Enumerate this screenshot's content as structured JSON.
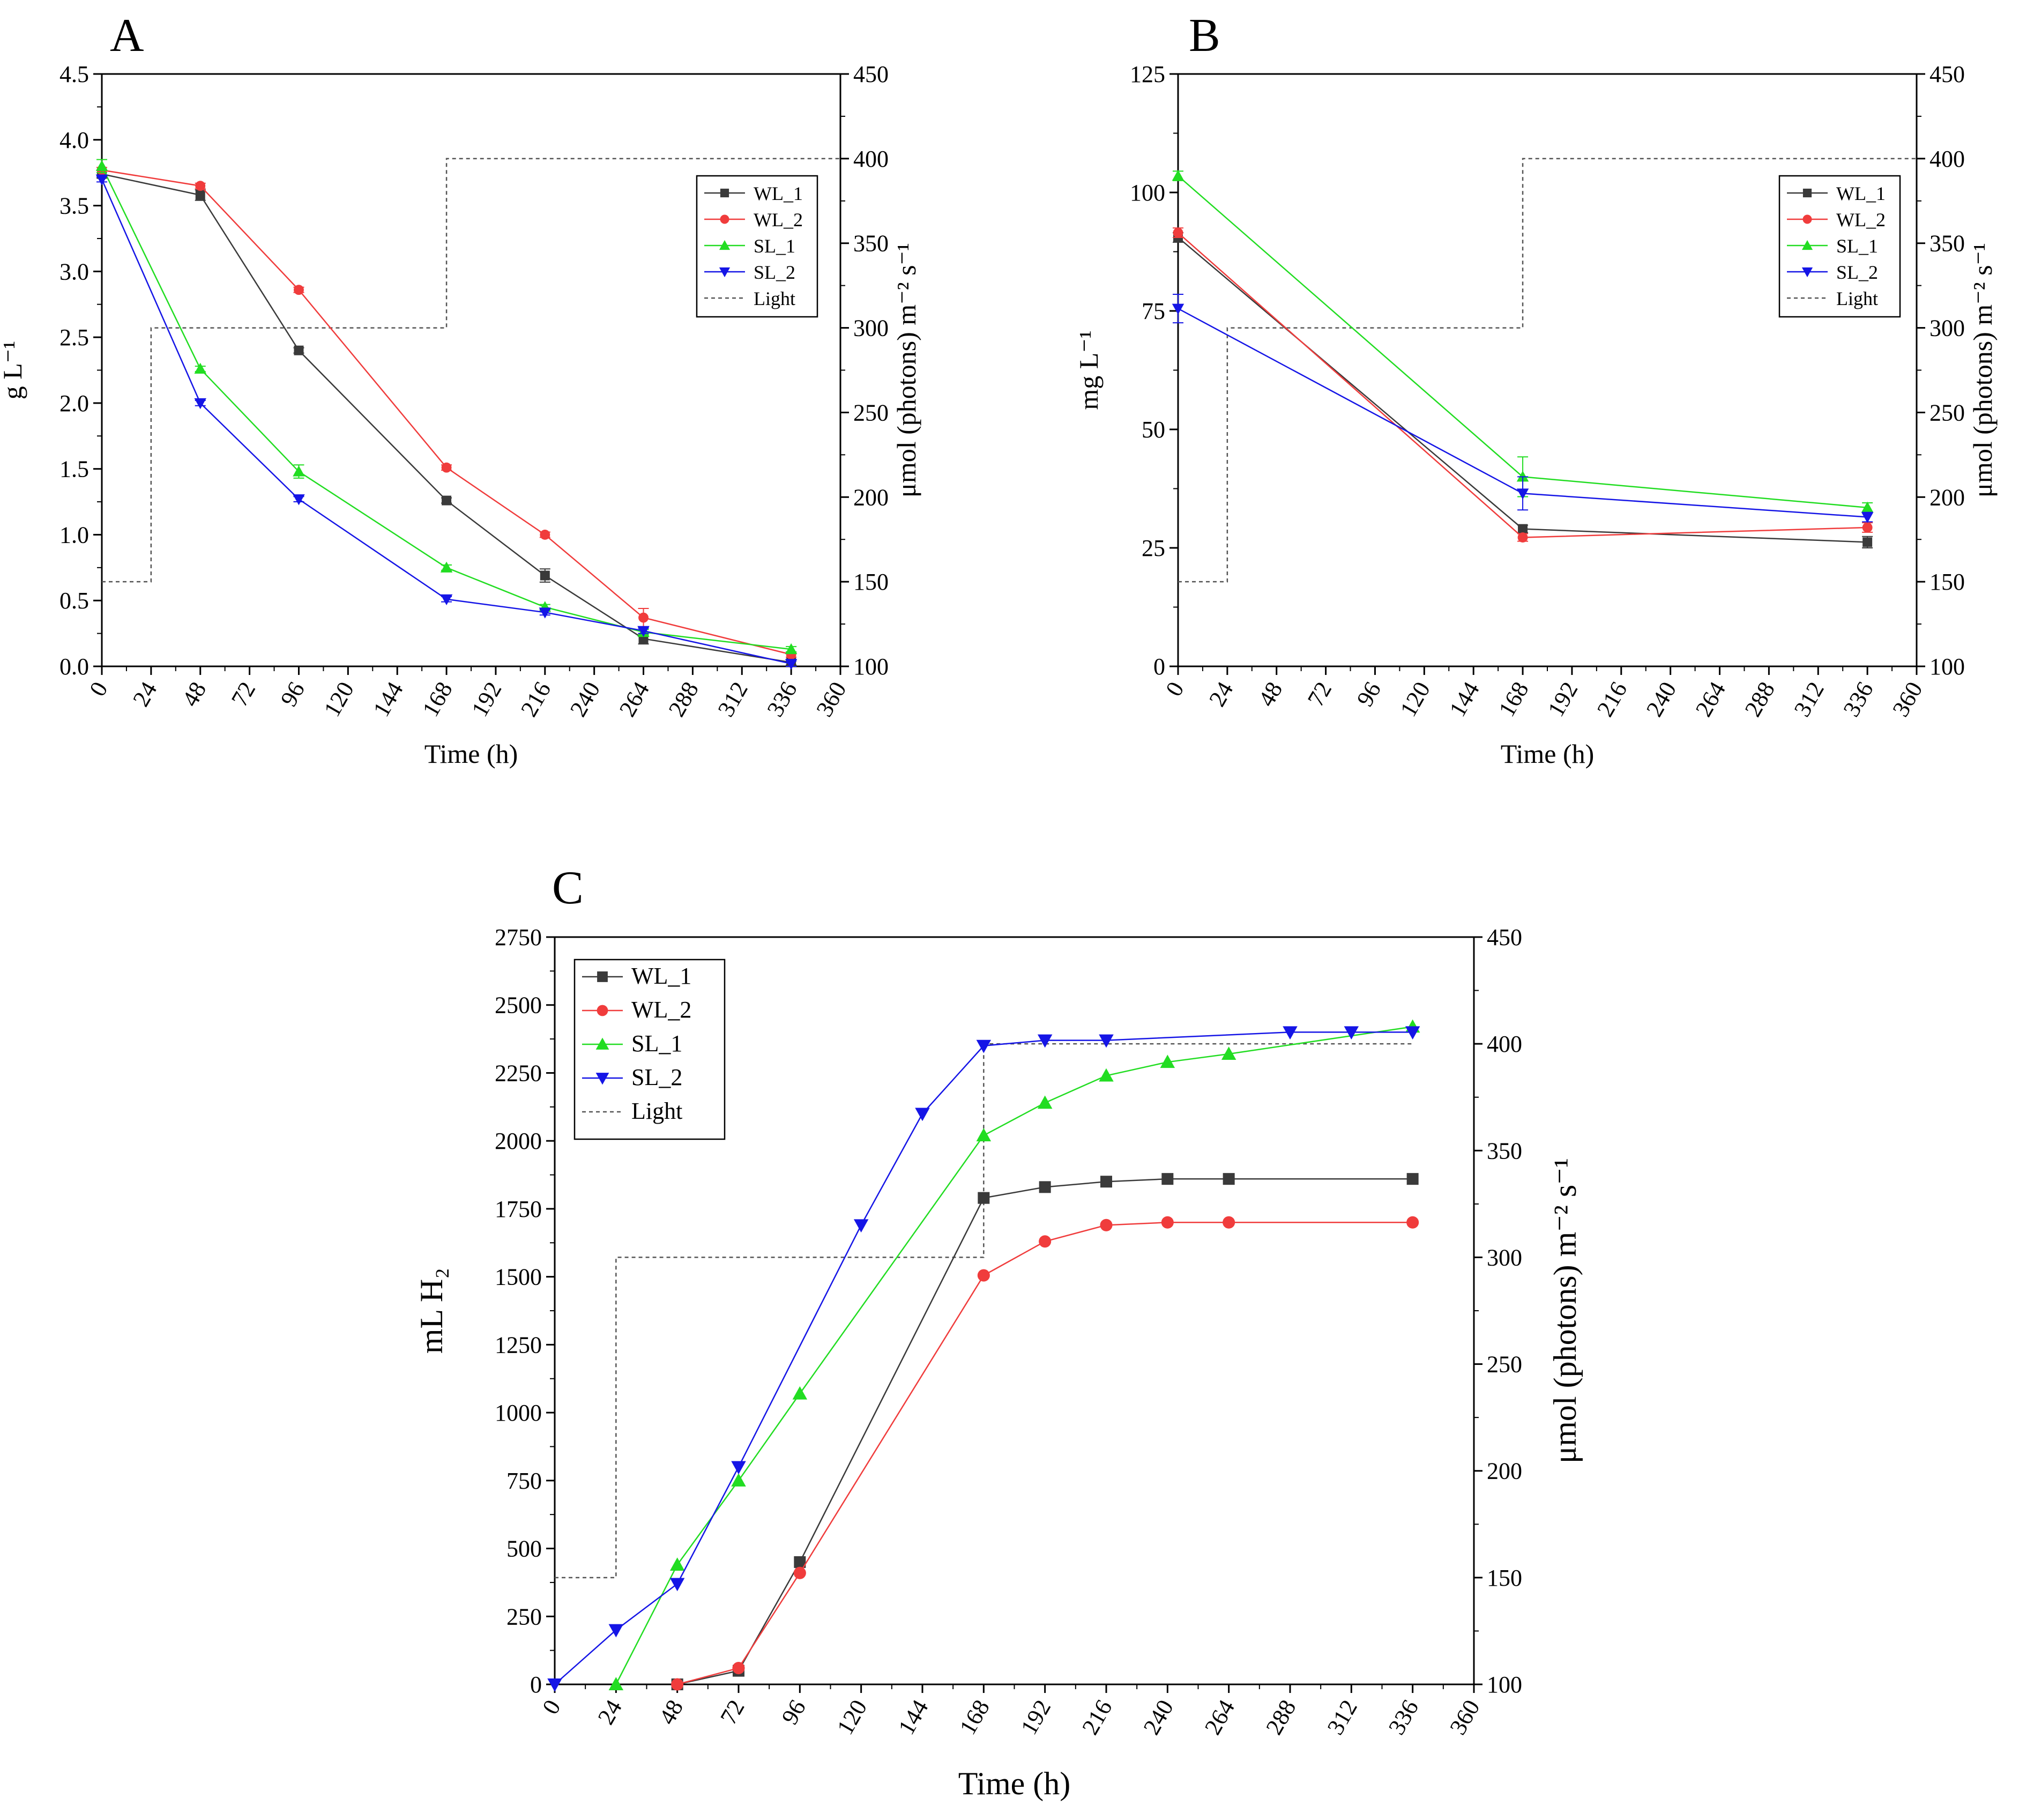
{
  "figure": {
    "panels": [
      "A",
      "B",
      "C"
    ]
  },
  "chart_data": [
    {
      "panel": "A",
      "type": "line",
      "xlabel": "Time (h)",
      "ylabel": "g L⁻¹",
      "y2label": "μmol (photons) m⁻² s⁻¹",
      "xlim": [
        0,
        360
      ],
      "ylim": [
        0,
        4.5
      ],
      "y2lim": [
        100,
        450
      ],
      "x_ticks": [
        "0",
        "24",
        "48",
        "72",
        "96",
        "120",
        "144",
        "168",
        "192",
        "216",
        "240",
        "264",
        "288",
        "312",
        "336",
        "360"
      ],
      "y_ticks": [
        "0.0",
        "0.5",
        "1.0",
        "1.5",
        "2.0",
        "2.5",
        "3.0",
        "3.5",
        "4.0",
        "4.5"
      ],
      "y2_ticks": [
        "100",
        "150",
        "200",
        "250",
        "300",
        "350",
        "400",
        "450"
      ],
      "legend": [
        "WL_1",
        "WL_2",
        "SL_1",
        "SL_2",
        "Light"
      ],
      "legend_position": "top-right",
      "series": [
        {
          "name": "WL_1",
          "color": "#3a3a3a",
          "marker": "square",
          "x": [
            0,
            48,
            96,
            168,
            216,
            264,
            336
          ],
          "y": [
            3.74,
            3.58,
            2.4,
            1.26,
            0.69,
            0.21,
            0.03
          ],
          "err": [
            0.03,
            0.04,
            0.02,
            0.02,
            0.05,
            0.04,
            0.02
          ]
        },
        {
          "name": "WL_2",
          "color": "#f03c3c",
          "marker": "circle",
          "x": [
            0,
            48,
            96,
            168,
            216,
            264,
            336
          ],
          "y": [
            3.77,
            3.65,
            2.86,
            1.51,
            1.0,
            0.37,
            0.09
          ],
          "err": [
            0.02,
            0.02,
            0.02,
            0.02,
            0.02,
            0.07,
            0.02
          ]
        },
        {
          "name": "SL_1",
          "color": "#22dd22",
          "marker": "triangle-up",
          "x": [
            0,
            48,
            96,
            168,
            216,
            264,
            336
          ],
          "y": [
            3.8,
            2.26,
            1.48,
            0.75,
            0.45,
            0.26,
            0.13
          ],
          "err": [
            0.05,
            0.02,
            0.05,
            0.02,
            0.02,
            0.02,
            0.02
          ]
        },
        {
          "name": "SL_2",
          "color": "#1515e6",
          "marker": "triangle-down",
          "x": [
            0,
            48,
            96,
            168,
            216,
            264,
            336
          ],
          "y": [
            3.7,
            2.0,
            1.27,
            0.51,
            0.41,
            0.27,
            0.02
          ],
          "err": [
            0.02,
            0.02,
            0.02,
            0.02,
            0.02,
            0.02,
            0.02
          ]
        }
      ],
      "light": {
        "name": "Light",
        "x": [
          0,
          24,
          24,
          168,
          168,
          360
        ],
        "y": [
          150,
          150,
          300,
          300,
          400,
          400
        ]
      }
    },
    {
      "panel": "B",
      "type": "line",
      "xlabel": "Time (h)",
      "ylabel": "mg L⁻¹",
      "y2label": "μmol (photons) m⁻² s⁻¹",
      "xlim": [
        0,
        360
      ],
      "ylim": [
        0,
        125
      ],
      "y2lim": [
        100,
        450
      ],
      "x_ticks": [
        "0",
        "24",
        "48",
        "72",
        "96",
        "120",
        "144",
        "168",
        "192",
        "216",
        "240",
        "264",
        "288",
        "312",
        "336",
        "360"
      ],
      "y_ticks": [
        "0",
        "25",
        "50",
        "75",
        "100",
        "125"
      ],
      "y2_ticks": [
        "100",
        "150",
        "200",
        "250",
        "300",
        "350",
        "400",
        "450"
      ],
      "legend": [
        "WL_1",
        "WL_2",
        "SL_1",
        "SL_2",
        "Light"
      ],
      "legend_position": "top-right",
      "series": [
        {
          "name": "WL_1",
          "color": "#3a3a3a",
          "marker": "square",
          "x": [
            0,
            168,
            336
          ],
          "y": [
            90.5,
            29.0,
            26.2
          ],
          "err": [
            1.0,
            0.8,
            1.2
          ]
        },
        {
          "name": "WL_2",
          "color": "#f03c3c",
          "marker": "circle",
          "x": [
            0,
            168,
            336
          ],
          "y": [
            91.5,
            27.2,
            29.3
          ],
          "err": [
            1.0,
            0.8,
            1.0
          ]
        },
        {
          "name": "SL_1",
          "color": "#22dd22",
          "marker": "triangle-up",
          "x": [
            0,
            168,
            336
          ],
          "y": [
            103.5,
            40.0,
            33.5
          ],
          "err": [
            1.0,
            4.2,
            1.0
          ]
        },
        {
          "name": "SL_2",
          "color": "#1515e6",
          "marker": "triangle-down",
          "x": [
            0,
            168,
            336
          ],
          "y": [
            75.5,
            36.5,
            31.5
          ],
          "err": [
            3.0,
            3.5,
            1.0
          ]
        }
      ],
      "light": {
        "name": "Light",
        "x": [
          0,
          24,
          24,
          168,
          168,
          360
        ],
        "y": [
          150,
          150,
          300,
          300,
          400,
          400
        ]
      }
    },
    {
      "panel": "C",
      "type": "line",
      "xlabel": "Time (h)",
      "ylabel": "mL H₂",
      "y2label": "μmol (photons) m⁻² s⁻¹",
      "xlim": [
        0,
        360
      ],
      "ylim": [
        0,
        2750
      ],
      "y2lim": [
        100,
        450
      ],
      "x_ticks": [
        "0",
        "24",
        "48",
        "72",
        "96",
        "120",
        "144",
        "168",
        "192",
        "216",
        "240",
        "264",
        "288",
        "312",
        "336",
        "360"
      ],
      "y_ticks": [
        "0",
        "250",
        "500",
        "750",
        "1000",
        "1250",
        "1500",
        "1750",
        "2000",
        "2250",
        "2500",
        "2750"
      ],
      "y2_ticks": [
        "100",
        "150",
        "200",
        "250",
        "300",
        "350",
        "400",
        "450"
      ],
      "legend": [
        "WL_1",
        "WL_2",
        "SL_1",
        "SL_2",
        "Light"
      ],
      "legend_position": "top-left",
      "series": [
        {
          "name": "WL_1",
          "color": "#3a3a3a",
          "marker": "square",
          "x": [
            48,
            72,
            96,
            168,
            192,
            216,
            240,
            264,
            336
          ],
          "y": [
            0,
            50,
            450,
            1790,
            1830,
            1850,
            1860,
            1860,
            1860
          ]
        },
        {
          "name": "WL_2",
          "color": "#f03c3c",
          "marker": "circle",
          "x": [
            48,
            72,
            96,
            168,
            192,
            216,
            240,
            264,
            336
          ],
          "y": [
            0,
            60,
            410,
            1505,
            1630,
            1690,
            1700,
            1700,
            1700
          ]
        },
        {
          "name": "SL_1",
          "color": "#22dd22",
          "marker": "triangle-up",
          "x": [
            24,
            48,
            72,
            96,
            168,
            192,
            216,
            240,
            264,
            336
          ],
          "y": [
            0,
            440,
            750,
            1070,
            2020,
            2140,
            2240,
            2290,
            2320,
            2420
          ]
        },
        {
          "name": "SL_2",
          "color": "#1515e6",
          "marker": "triangle-down",
          "x": [
            0,
            24,
            48,
            72,
            120,
            144,
            168,
            192,
            216,
            288,
            312,
            336
          ],
          "y": [
            0,
            200,
            370,
            800,
            1690,
            2100,
            2350,
            2370,
            2370,
            2400,
            2400,
            2400
          ]
        }
      ],
      "light": {
        "name": "Light",
        "x": [
          0,
          24,
          24,
          168,
          168,
          336
        ],
        "y": [
          150,
          150,
          300,
          300,
          400,
          400
        ]
      }
    }
  ]
}
